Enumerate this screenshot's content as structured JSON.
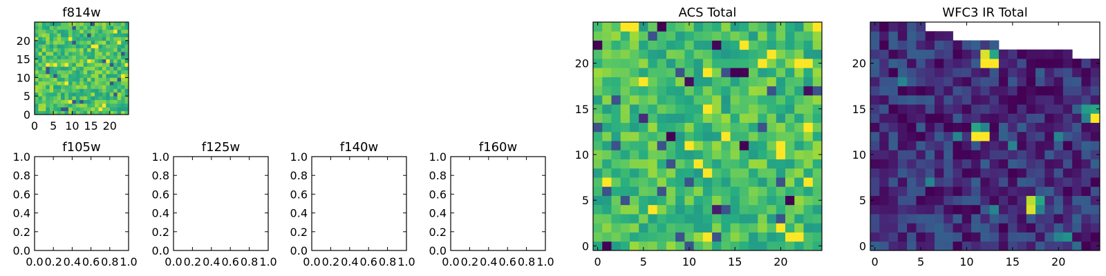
{
  "chart_data": [
    {
      "id": "f814w",
      "type": "heatmap",
      "title": "f814w",
      "colormap": "viridis",
      "grid_size": [
        25,
        25
      ],
      "xlim": [
        0,
        25
      ],
      "ylim": [
        0,
        25
      ],
      "xticks": [
        0,
        5,
        10,
        15,
        20
      ],
      "yticks": [
        0,
        5,
        10,
        15,
        20
      ],
      "value_range": [
        0,
        1
      ],
      "typical_value": 0.72,
      "values": "dense 25x25 noisy grid, mostly green-yellow (approximately 0.6-0.9) with scattered dark pixels"
    },
    {
      "id": "f105w",
      "type": "empty",
      "title": "f105w",
      "xlim": [
        0,
        1
      ],
      "ylim": [
        0,
        1
      ],
      "xticks": [
        "0.0",
        "0.2",
        "0.4",
        "0.6",
        "0.8",
        "1.0"
      ],
      "yticks": [
        "0.0",
        "0.2",
        "0.4",
        "0.6",
        "0.8",
        "1.0"
      ]
    },
    {
      "id": "f125w",
      "type": "empty",
      "title": "f125w",
      "xlim": [
        0,
        1
      ],
      "ylim": [
        0,
        1
      ],
      "xticks": [
        "0.0",
        "0.2",
        "0.4",
        "0.6",
        "0.8",
        "1.0"
      ],
      "yticks": [
        "0.0",
        "0.2",
        "0.4",
        "0.6",
        "0.8",
        "1.0"
      ]
    },
    {
      "id": "f140w",
      "type": "empty",
      "title": "f140w",
      "xlim": [
        0,
        1
      ],
      "ylim": [
        0,
        1
      ],
      "xticks": [
        "0.0",
        "0.2",
        "0.4",
        "0.6",
        "0.8",
        "1.0"
      ],
      "yticks": [
        "0.0",
        "0.2",
        "0.4",
        "0.6",
        "0.8",
        "1.0"
      ]
    },
    {
      "id": "f160w",
      "type": "empty",
      "title": "f160w",
      "xlim": [
        0,
        1
      ],
      "ylim": [
        0,
        1
      ],
      "xticks": [
        "0.0",
        "0.2",
        "0.4",
        "0.6",
        "0.8",
        "1.0"
      ],
      "yticks": [
        "0.0",
        "0.2",
        "0.4",
        "0.6",
        "0.8",
        "1.0"
      ]
    },
    {
      "id": "acs_total",
      "type": "heatmap",
      "title": "ACS Total",
      "colormap": "viridis",
      "grid_size": [
        25,
        25
      ],
      "xlim": [
        -0.5,
        24.5
      ],
      "ylim": [
        -0.5,
        24.5
      ],
      "xticks": [
        0,
        5,
        10,
        15,
        20
      ],
      "yticks": [
        0,
        5,
        10,
        15,
        20
      ],
      "value_range": [
        0,
        1
      ],
      "typical_value": 0.7,
      "values": "dense 25x25 noisy grid, mostly green-yellow (approximately 0.6-0.9) with scattered dark pixels",
      "notable_pixels": [
        {
          "x": 1,
          "y": 0,
          "v": 0.0
        },
        {
          "x": 7,
          "y": 24,
          "v": 0.0
        },
        {
          "x": 13,
          "y": 22,
          "v": 0.02
        },
        {
          "x": 15,
          "y": 19,
          "v": 0.0
        },
        {
          "x": 16,
          "y": 19,
          "v": 0.0
        },
        {
          "x": 23,
          "y": 17,
          "v": 0.05
        },
        {
          "x": 8,
          "y": 12,
          "v": 0.0
        },
        {
          "x": 16,
          "y": 11,
          "v": 0.0
        },
        {
          "x": 10,
          "y": 18,
          "v": 0.05
        },
        {
          "x": 21,
          "y": 5,
          "v": 0.0
        },
        {
          "x": 13,
          "y": 4,
          "v": 0.1
        },
        {
          "x": 5,
          "y": 14,
          "v": 0.15
        },
        {
          "x": 0,
          "y": 22,
          "v": 0.0
        },
        {
          "x": 24,
          "y": 24,
          "v": 1.0
        },
        {
          "x": 3,
          "y": 24,
          "v": 1.0
        },
        {
          "x": 4,
          "y": 24,
          "v": 1.0
        },
        {
          "x": 20,
          "y": 2,
          "v": 1.0
        },
        {
          "x": 21,
          "y": 1,
          "v": 1.0
        },
        {
          "x": 22,
          "y": 1,
          "v": 1.0
        },
        {
          "x": 22,
          "y": 20,
          "v": 1.0
        },
        {
          "x": 20,
          "y": 10,
          "v": 1.0
        },
        {
          "x": 20,
          "y": 11,
          "v": 1.0
        },
        {
          "x": 18,
          "y": 20,
          "v": 1.0
        },
        {
          "x": 12,
          "y": 8,
          "v": 1.0
        }
      ]
    },
    {
      "id": "wfc3_ir_total",
      "type": "heatmap",
      "title": "WFC3 IR Total",
      "colormap": "viridis",
      "grid_size": [
        25,
        25
      ],
      "xlim": [
        -0.5,
        24.5
      ],
      "ylim": [
        -0.5,
        24.5
      ],
      "xticks": [
        0,
        5,
        10,
        15,
        20
      ],
      "yticks": [
        0,
        5,
        10,
        15,
        20
      ],
      "value_range": [
        0,
        1
      ],
      "typical_value": 0.15,
      "values": "dense 25x25 grid, mostly dark blue-purple (approximately 0.05-0.3) with a few bright pixels",
      "missing_top_right": [
        {
          "x_from": 6,
          "x_to": 24,
          "y_from": 24
        },
        {
          "x_from": 9,
          "x_to": 24,
          "y_from": 23
        },
        {
          "x_from": 14,
          "x_to": 24,
          "y_from": 22
        },
        {
          "x_from": 22,
          "x_to": 24,
          "y_from": 21
        }
      ],
      "notable_pixels": [
        {
          "x": 12,
          "y": 20,
          "v": 1.0
        },
        {
          "x": 13,
          "y": 20,
          "v": 1.0
        },
        {
          "x": 12,
          "y": 21,
          "v": 0.95
        },
        {
          "x": 13,
          "y": 21,
          "v": 0.6
        },
        {
          "x": 11,
          "y": 12,
          "v": 1.0
        },
        {
          "x": 12,
          "y": 12,
          "v": 1.0
        },
        {
          "x": 11,
          "y": 13,
          "v": 0.6
        },
        {
          "x": 12,
          "y": 13,
          "v": 0.45
        },
        {
          "x": 17,
          "y": 4,
          "v": 0.95
        },
        {
          "x": 17,
          "y": 5,
          "v": 0.9
        },
        {
          "x": 18,
          "y": 5,
          "v": 0.6
        },
        {
          "x": 18,
          "y": 4,
          "v": 0.45
        },
        {
          "x": 24,
          "y": 14,
          "v": 1.0
        },
        {
          "x": 23,
          "y": 15,
          "v": 0.55
        },
        {
          "x": 24,
          "y": 15,
          "v": 0.6
        },
        {
          "x": 20,
          "y": 1,
          "v": 0.45
        },
        {
          "x": 21,
          "y": 1,
          "v": 0.5
        },
        {
          "x": 22,
          "y": 0,
          "v": 0.35
        }
      ]
    }
  ]
}
